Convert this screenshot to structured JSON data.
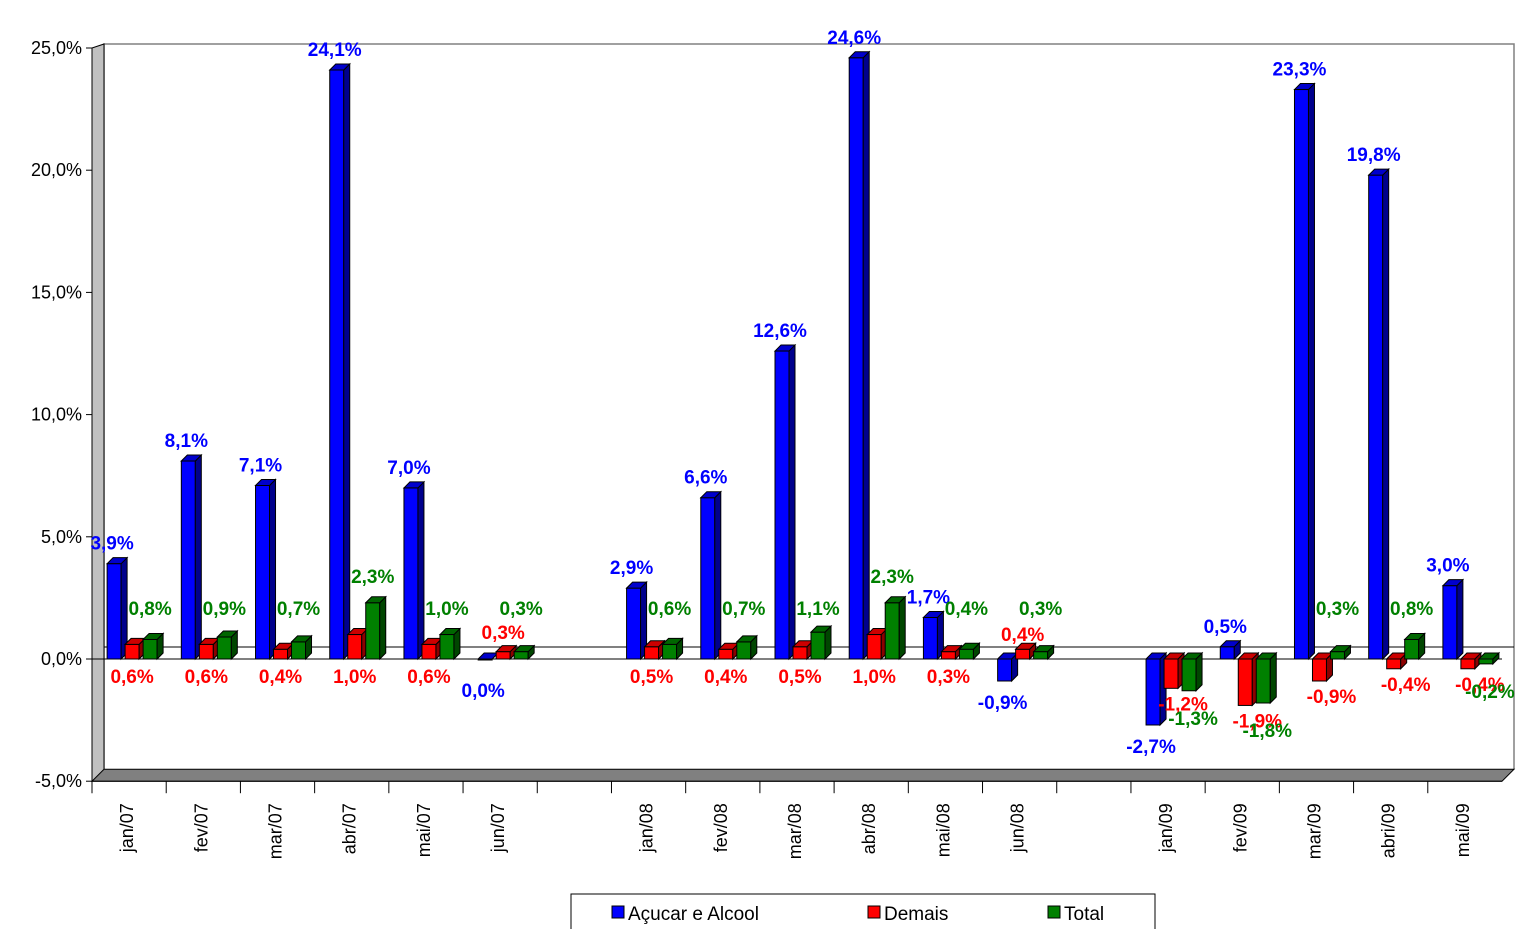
{
  "chart_data": {
    "type": "bar",
    "title": "",
    "xlabel": "",
    "ylabel": "",
    "ylim": [
      -5,
      25
    ],
    "y_ticks": [
      "25,0%",
      "20,0%",
      "15,0%",
      "10,0%",
      "5,0%",
      "0,0%",
      "-5,0%"
    ],
    "y_tick_values": [
      25,
      20,
      15,
      10,
      5,
      0,
      -5
    ],
    "grid": false,
    "legend_position": "bottom",
    "categories": [
      "jan/07",
      "fev/07",
      "mar/07",
      "abr/07",
      "mai/07",
      "jun/07",
      "",
      "jan/08",
      "fev/08",
      "mar/08",
      "abr/08",
      "mai/08",
      "jun/08",
      "",
      "jan/09",
      "fev/09",
      "mar/09",
      "abri/09",
      "mai/09"
    ],
    "series": [
      {
        "name": "Açucar e Alcool",
        "color": "#0000ff",
        "values": [
          3.9,
          8.1,
          7.1,
          24.1,
          7.0,
          0.0,
          null,
          2.9,
          6.6,
          12.6,
          24.6,
          1.7,
          -0.9,
          null,
          -2.7,
          0.5,
          23.3,
          19.8,
          3.0
        ],
        "labels": [
          "3,9%",
          "8,1%",
          "7,1%",
          "24,1%",
          "7,0%",
          "0,0%",
          "",
          "2,9%",
          "6,6%",
          "12,6%",
          "24,6%",
          "1,7%",
          "-0,9%",
          "",
          "-2,7%",
          "0,5%",
          "23,3%",
          "19,8%",
          "3,0%"
        ],
        "label_color": "#0000ff"
      },
      {
        "name": "Demais",
        "color": "#ff0000",
        "values": [
          0.6,
          0.6,
          0.4,
          1.0,
          0.6,
          0.3,
          null,
          0.5,
          0.4,
          0.5,
          1.0,
          0.3,
          0.4,
          null,
          -1.2,
          -1.9,
          -0.9,
          -0.4,
          -0.4
        ],
        "labels": [
          "0,6%",
          "0,6%",
          "0,4%",
          "1,0%",
          "0,6%",
          "0,3%",
          "",
          "0,5%",
          "0,4%",
          "0,5%",
          "1,0%",
          "0,3%",
          "0,4%",
          "",
          "-1,2%",
          "-1,9%",
          "-0,9%",
          "-0,4%",
          "-0,4%"
        ],
        "label_color": "#ff0000"
      },
      {
        "name": "Total",
        "color": "#008000",
        "values": [
          0.8,
          0.9,
          0.7,
          2.3,
          1.0,
          0.3,
          null,
          0.6,
          0.7,
          1.1,
          2.3,
          0.4,
          0.3,
          null,
          -1.3,
          -1.8,
          0.3,
          0.8,
          -0.2
        ],
        "labels": [
          "0,8%",
          "0,9%",
          "0,7%",
          "2,3%",
          "1,0%",
          "0,3%",
          "",
          "0,6%",
          "0,7%",
          "1,1%",
          "2,3%",
          "0,4%",
          "0,3%",
          "",
          "-1,3%",
          "-1,8%",
          "0,3%",
          "0,8%",
          "-0,2%"
        ],
        "label_color": "#008000"
      }
    ]
  }
}
